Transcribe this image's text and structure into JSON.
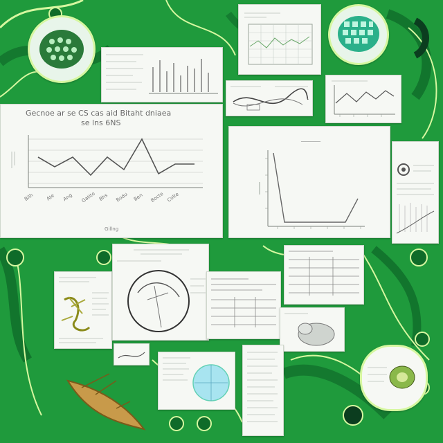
{
  "scene": {
    "theme": "green-collage",
    "palette": {
      "background": "#1f9a3c",
      "deep_green": "#0f6b29",
      "light_green": "#6dd07a",
      "lime": "#d6f7a0",
      "panel": "#f6f8f4",
      "chart_line": "#6a6f6a",
      "accent_teal": "#63d1b5"
    },
    "panels": [
      "main-line-chart",
      "right-line-chart",
      "top-bar-chart",
      "top-grid-chart",
      "top-curve-card",
      "top-right-line-card",
      "left-leaf-illustration",
      "center-circle-diagram",
      "center-text-table",
      "right-table-card",
      "bottom-globe-card",
      "bottom-right-text-card",
      "right-info-card",
      "bottom-right-photo-card"
    ],
    "main_chart": {
      "title_line1": "Gecnoe ar se CS cas aid Bitaht dniaea",
      "title_line2": "se lns 6NS",
      "x_labels": [
        "Bilh",
        "Ate",
        "Ang",
        "Gatito",
        "Bhs",
        "Bodu",
        "Ben",
        "Bocte",
        "Colte"
      ],
      "bottom_label": "Gillng"
    },
    "right_chart": {
      "title": "________"
    }
  }
}
